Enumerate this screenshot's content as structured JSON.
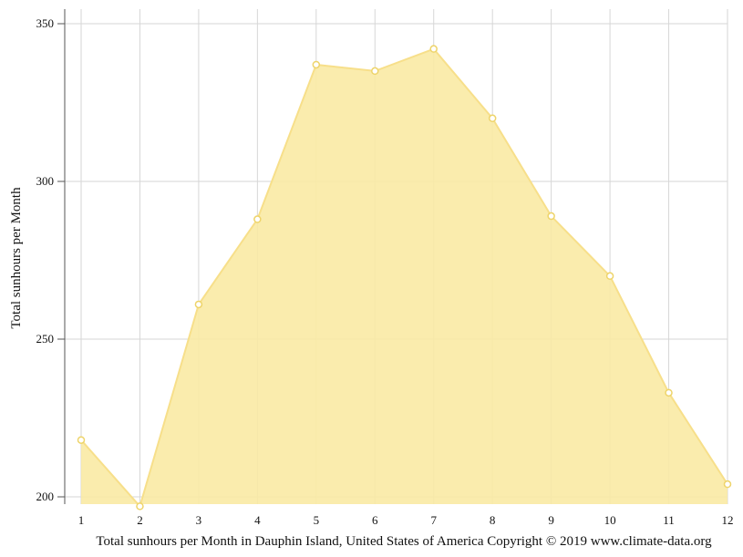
{
  "chart_data": {
    "type": "area",
    "x": [
      1,
      2,
      3,
      4,
      5,
      6,
      7,
      8,
      9,
      10,
      11,
      12
    ],
    "values": [
      218,
      197,
      261,
      288,
      337,
      335,
      342,
      320,
      289,
      270,
      233,
      204
    ],
    "ylabel": "Total sunhours per Month",
    "xlabel": "Total sunhours per Month in Dauphin Island, United States of America Copyright © 2019 www.climate-data.org",
    "ylim": [
      197,
      355
    ],
    "yticks": [
      200,
      250,
      300,
      350
    ],
    "grid": true,
    "colors": {
      "fill": "#f9eaa4",
      "line": "#f7df8a",
      "marker_fill": "#ffffff",
      "marker_stroke": "#eed46a",
      "grid": "#d6d6d6",
      "axis": "#555555"
    }
  }
}
